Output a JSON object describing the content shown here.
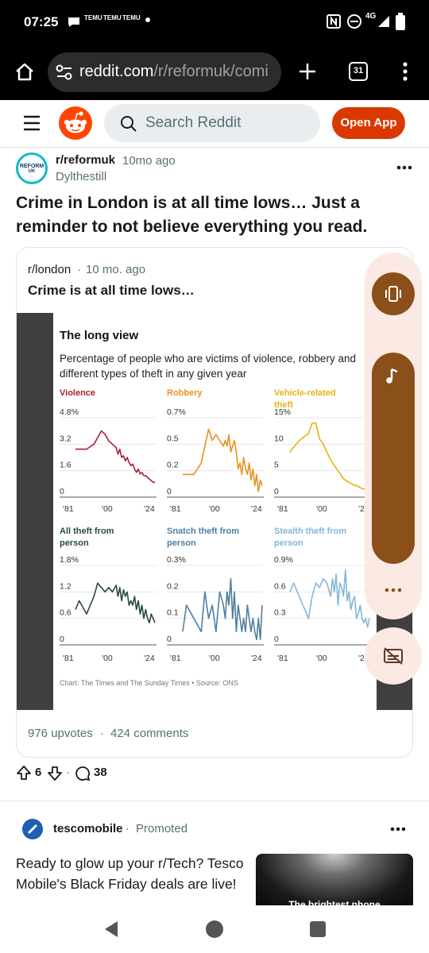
{
  "status": {
    "time": "07:25",
    "notif_tags": [
      "TEMU",
      "TEMU",
      "TEMU"
    ],
    "network": "4G"
  },
  "browser": {
    "url_host": "reddit.com",
    "url_path": "/r/reformuk/comi",
    "tab_count": "31"
  },
  "reddit_header": {
    "search_placeholder": "Search Reddit",
    "open_app_label": "Open App"
  },
  "post": {
    "subreddit": "r/reformuk",
    "time_ago": "10mo ago",
    "author": "Dylthestill",
    "avatar_text_1": "REFORM",
    "avatar_text_2": "UK",
    "title": "Crime in London is at all time lows… Just a reminder to not believe everything you read.",
    "upvote_count": "6",
    "comment_count": "38"
  },
  "crosspost": {
    "subreddit": "r/london",
    "time_ago": "10 mo. ago",
    "title": "Crime is at all time lows…",
    "upvotes_label": "976 upvotes",
    "comments_label": "424 comments",
    "separator": "·"
  },
  "chart_data": {
    "type": "line",
    "title": "The long view",
    "subtitle": "Percentage of people who are victims of violence, robbery and different types of theft in any given year",
    "source": "Chart: The Times and The Sunday Times • Source: ONS",
    "x_ticks": [
      "'81",
      "'00",
      "'24"
    ],
    "panels": [
      {
        "name": "Violence",
        "color": "#a8202f",
        "yticks": [
          "4.8%",
          "3.2",
          "1.6",
          "0"
        ],
        "ylim": [
          0,
          4.8
        ],
        "x": [
          1981,
          1983,
          1987,
          1991,
          1993,
          1995,
          1997,
          1999,
          2001,
          2003,
          2004,
          2005,
          2006,
          2007,
          2008,
          2009,
          2010,
          2011,
          2012,
          2013,
          2014,
          2015,
          2016,
          2017,
          2018,
          2019,
          2020,
          2021,
          2022,
          2023,
          2024
        ],
        "values": [
          2.9,
          2.9,
          2.9,
          3.2,
          3.6,
          4.0,
          3.8,
          3.4,
          3.2,
          3.0,
          2.6,
          2.9,
          2.4,
          2.5,
          2.2,
          2.4,
          2.1,
          1.9,
          2.0,
          1.7,
          1.5,
          1.7,
          1.4,
          1.5,
          1.3,
          1.3,
          1.2,
          1.1,
          1.0,
          0.9,
          0.9
        ]
      },
      {
        "name": "Robbery",
        "color": "#e8921f",
        "yticks": [
          "0.7%",
          "0.5",
          "0.2",
          "0"
        ],
        "ylim": [
          0,
          0.7
        ],
        "x": [
          1981,
          1983,
          1987,
          1991,
          1993,
          1995,
          1997,
          1999,
          2001,
          2003,
          2004,
          2005,
          2006,
          2007,
          2008,
          2009,
          2010,
          2011,
          2012,
          2013,
          2014,
          2015,
          2016,
          2017,
          2018,
          2019,
          2020,
          2021,
          2022,
          2023,
          2024
        ],
        "values": [
          0.2,
          0.2,
          0.2,
          0.3,
          0.45,
          0.6,
          0.5,
          0.55,
          0.5,
          0.45,
          0.5,
          0.45,
          0.55,
          0.4,
          0.45,
          0.5,
          0.4,
          0.25,
          0.3,
          0.2,
          0.35,
          0.25,
          0.2,
          0.3,
          0.15,
          0.25,
          0.1,
          0.2,
          0.05,
          0.15,
          0.1
        ]
      },
      {
        "name": "Vehicle-related theft",
        "color": "#e5b30f",
        "yticks": [
          "15%",
          "10",
          "5",
          "0"
        ],
        "ylim": [
          0,
          15
        ],
        "x": [
          1981,
          1983,
          1987,
          1991,
          1993,
          1995,
          1997,
          1999,
          2001,
          2003,
          2004,
          2005,
          2006,
          2007,
          2008,
          2009,
          2010,
          2011,
          2012,
          2013,
          2014,
          2015,
          2016,
          2017,
          2018,
          2019,
          2020,
          2021,
          2022,
          2023,
          2024
        ],
        "values": [
          8.5,
          9.5,
          11,
          12,
          14,
          14,
          11,
          10,
          8.5,
          7,
          6.5,
          6,
          5.5,
          5,
          4.5,
          4,
          3.5,
          3.2,
          3,
          2.8,
          2.6,
          2.4,
          2.2,
          2.2,
          2,
          1.8,
          1.6,
          1.5,
          1.5,
          1.3,
          1.2
        ]
      },
      {
        "name": "All theft from person",
        "color": "#294a46",
        "yticks": [
          "1.8%",
          "1.2",
          "0.6",
          "0"
        ],
        "ylim": [
          0,
          1.8
        ],
        "x": [
          1981,
          1983,
          1987,
          1991,
          1993,
          1995,
          1997,
          1999,
          2001,
          2003,
          2004,
          2005,
          2006,
          2007,
          2008,
          2009,
          2010,
          2011,
          2012,
          2013,
          2014,
          2015,
          2016,
          2017,
          2018,
          2019,
          2020,
          2021,
          2022,
          2023,
          2024
        ],
        "values": [
          0.8,
          1.0,
          0.7,
          1.1,
          1.4,
          1.3,
          1.2,
          1.3,
          1.2,
          1.35,
          1.1,
          1.3,
          1.0,
          1.25,
          1.1,
          1.2,
          0.9,
          1.0,
          0.9,
          1.1,
          0.8,
          1.0,
          0.7,
          0.9,
          0.6,
          0.8,
          0.6,
          0.5,
          0.7,
          0.6,
          0.5
        ]
      },
      {
        "name": "Snatch theft from person",
        "color": "#4f7fa1",
        "yticks": [
          "0.3%",
          "0.2",
          "0.1",
          "0"
        ],
        "ylim": [
          0,
          0.3
        ],
        "x": [
          1981,
          1983,
          1987,
          1991,
          1993,
          1995,
          1997,
          1999,
          2001,
          2003,
          2004,
          2005,
          2006,
          2007,
          2008,
          2009,
          2010,
          2011,
          2012,
          2013,
          2014,
          2015,
          2016,
          2017,
          2018,
          2019,
          2020,
          2021,
          2022,
          2023,
          2024
        ],
        "values": [
          0.05,
          0.15,
          0.1,
          0.05,
          0.2,
          0.1,
          0.15,
          0.05,
          0.2,
          0.15,
          0.1,
          0.2,
          0.15,
          0.25,
          0.1,
          0.2,
          0.05,
          0.15,
          0.1,
          0.05,
          0.1,
          0.05,
          0.15,
          0.1,
          0.05,
          0.1,
          0.05,
          0.02,
          0.1,
          0.02,
          0.15
        ]
      },
      {
        "name": "Stealth theft from person",
        "color": "#86b6d8",
        "yticks": [
          "0.9%",
          "0.6",
          "0.3",
          "0"
        ],
        "ylim": [
          0,
          0.9
        ],
        "x": [
          1981,
          1983,
          1987,
          1991,
          1993,
          1995,
          1997,
          1999,
          2001,
          2003,
          2004,
          2005,
          2006,
          2007,
          2008,
          2009,
          2010,
          2011,
          2012,
          2013,
          2014,
          2015,
          2016,
          2017,
          2018,
          2019,
          2020,
          2021,
          2022,
          2023,
          2024
        ],
        "values": [
          0.6,
          0.7,
          0.5,
          0.3,
          0.55,
          0.7,
          0.65,
          0.75,
          0.7,
          0.55,
          0.75,
          0.6,
          0.8,
          0.45,
          0.7,
          0.65,
          0.55,
          0.85,
          0.5,
          0.6,
          0.4,
          0.5,
          0.55,
          0.3,
          0.35,
          0.45,
          0.3,
          0.25,
          0.3,
          0.2,
          0.3
        ]
      }
    ]
  },
  "ad": {
    "brand": "tescomobile",
    "promoted_label": "Promoted",
    "text": "Ready to glow up your r/Tech? Tesco Mobile's Black Friday deals are live!",
    "image_caption": "The brightest phone"
  },
  "colors": {
    "reddit_orange": "#ff4500",
    "open_app_bg": "#d93900",
    "media_brown": "#8b4f1a"
  }
}
